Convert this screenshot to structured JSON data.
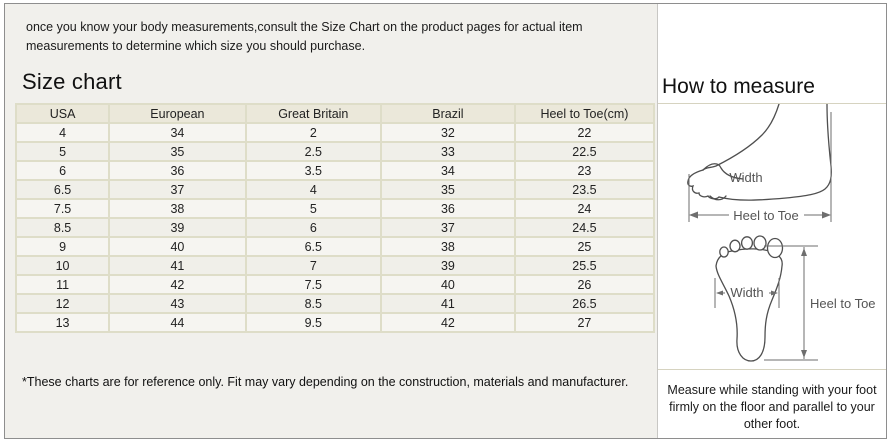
{
  "intro": {
    "text": "once you know your body measurements,consult the Size Chart on the product pages for actual item measurements to determine which size you should purchase."
  },
  "size_chart": {
    "title": "Size chart",
    "columns": [
      "USA",
      "European",
      "Great Britain",
      "Brazil",
      "Heel to Toe(cm)"
    ],
    "rows": [
      [
        "4",
        "34",
        "2",
        "32",
        "22"
      ],
      [
        "5",
        "35",
        "2.5",
        "33",
        "22.5"
      ],
      [
        "6",
        "36",
        "3.5",
        "34",
        "23"
      ],
      [
        "6.5",
        "37",
        "4",
        "35",
        "23.5"
      ],
      [
        "7.5",
        "38",
        "5",
        "36",
        "24"
      ],
      [
        "8.5",
        "39",
        "6",
        "37",
        "24.5"
      ],
      [
        "9",
        "40",
        "6.5",
        "38",
        "25"
      ],
      [
        "10",
        "41",
        "7",
        "39",
        "25.5"
      ],
      [
        "11",
        "42",
        "7.5",
        "40",
        "26"
      ],
      [
        "12",
        "43",
        "8.5",
        "41",
        "26.5"
      ],
      [
        "13",
        "44",
        "9.5",
        "42",
        "27"
      ]
    ],
    "footnote": "*These charts are for reference only. Fit may vary depending on the construction, materials and manufacturer."
  },
  "how_to_measure": {
    "title": "How to measure",
    "labels": {
      "width": "Width",
      "heel_to_toe": "Heel to Toe"
    },
    "note": "Measure while standing with your foot firmly on the floor and parallel to your other foot."
  },
  "colors": {
    "panel_bg": "#f1f0ec",
    "table_header_bg": "#ebe8da",
    "table_border": "#deddc8",
    "outer_border": "#8e8e8e",
    "figure_border": "#d6d3c0"
  }
}
